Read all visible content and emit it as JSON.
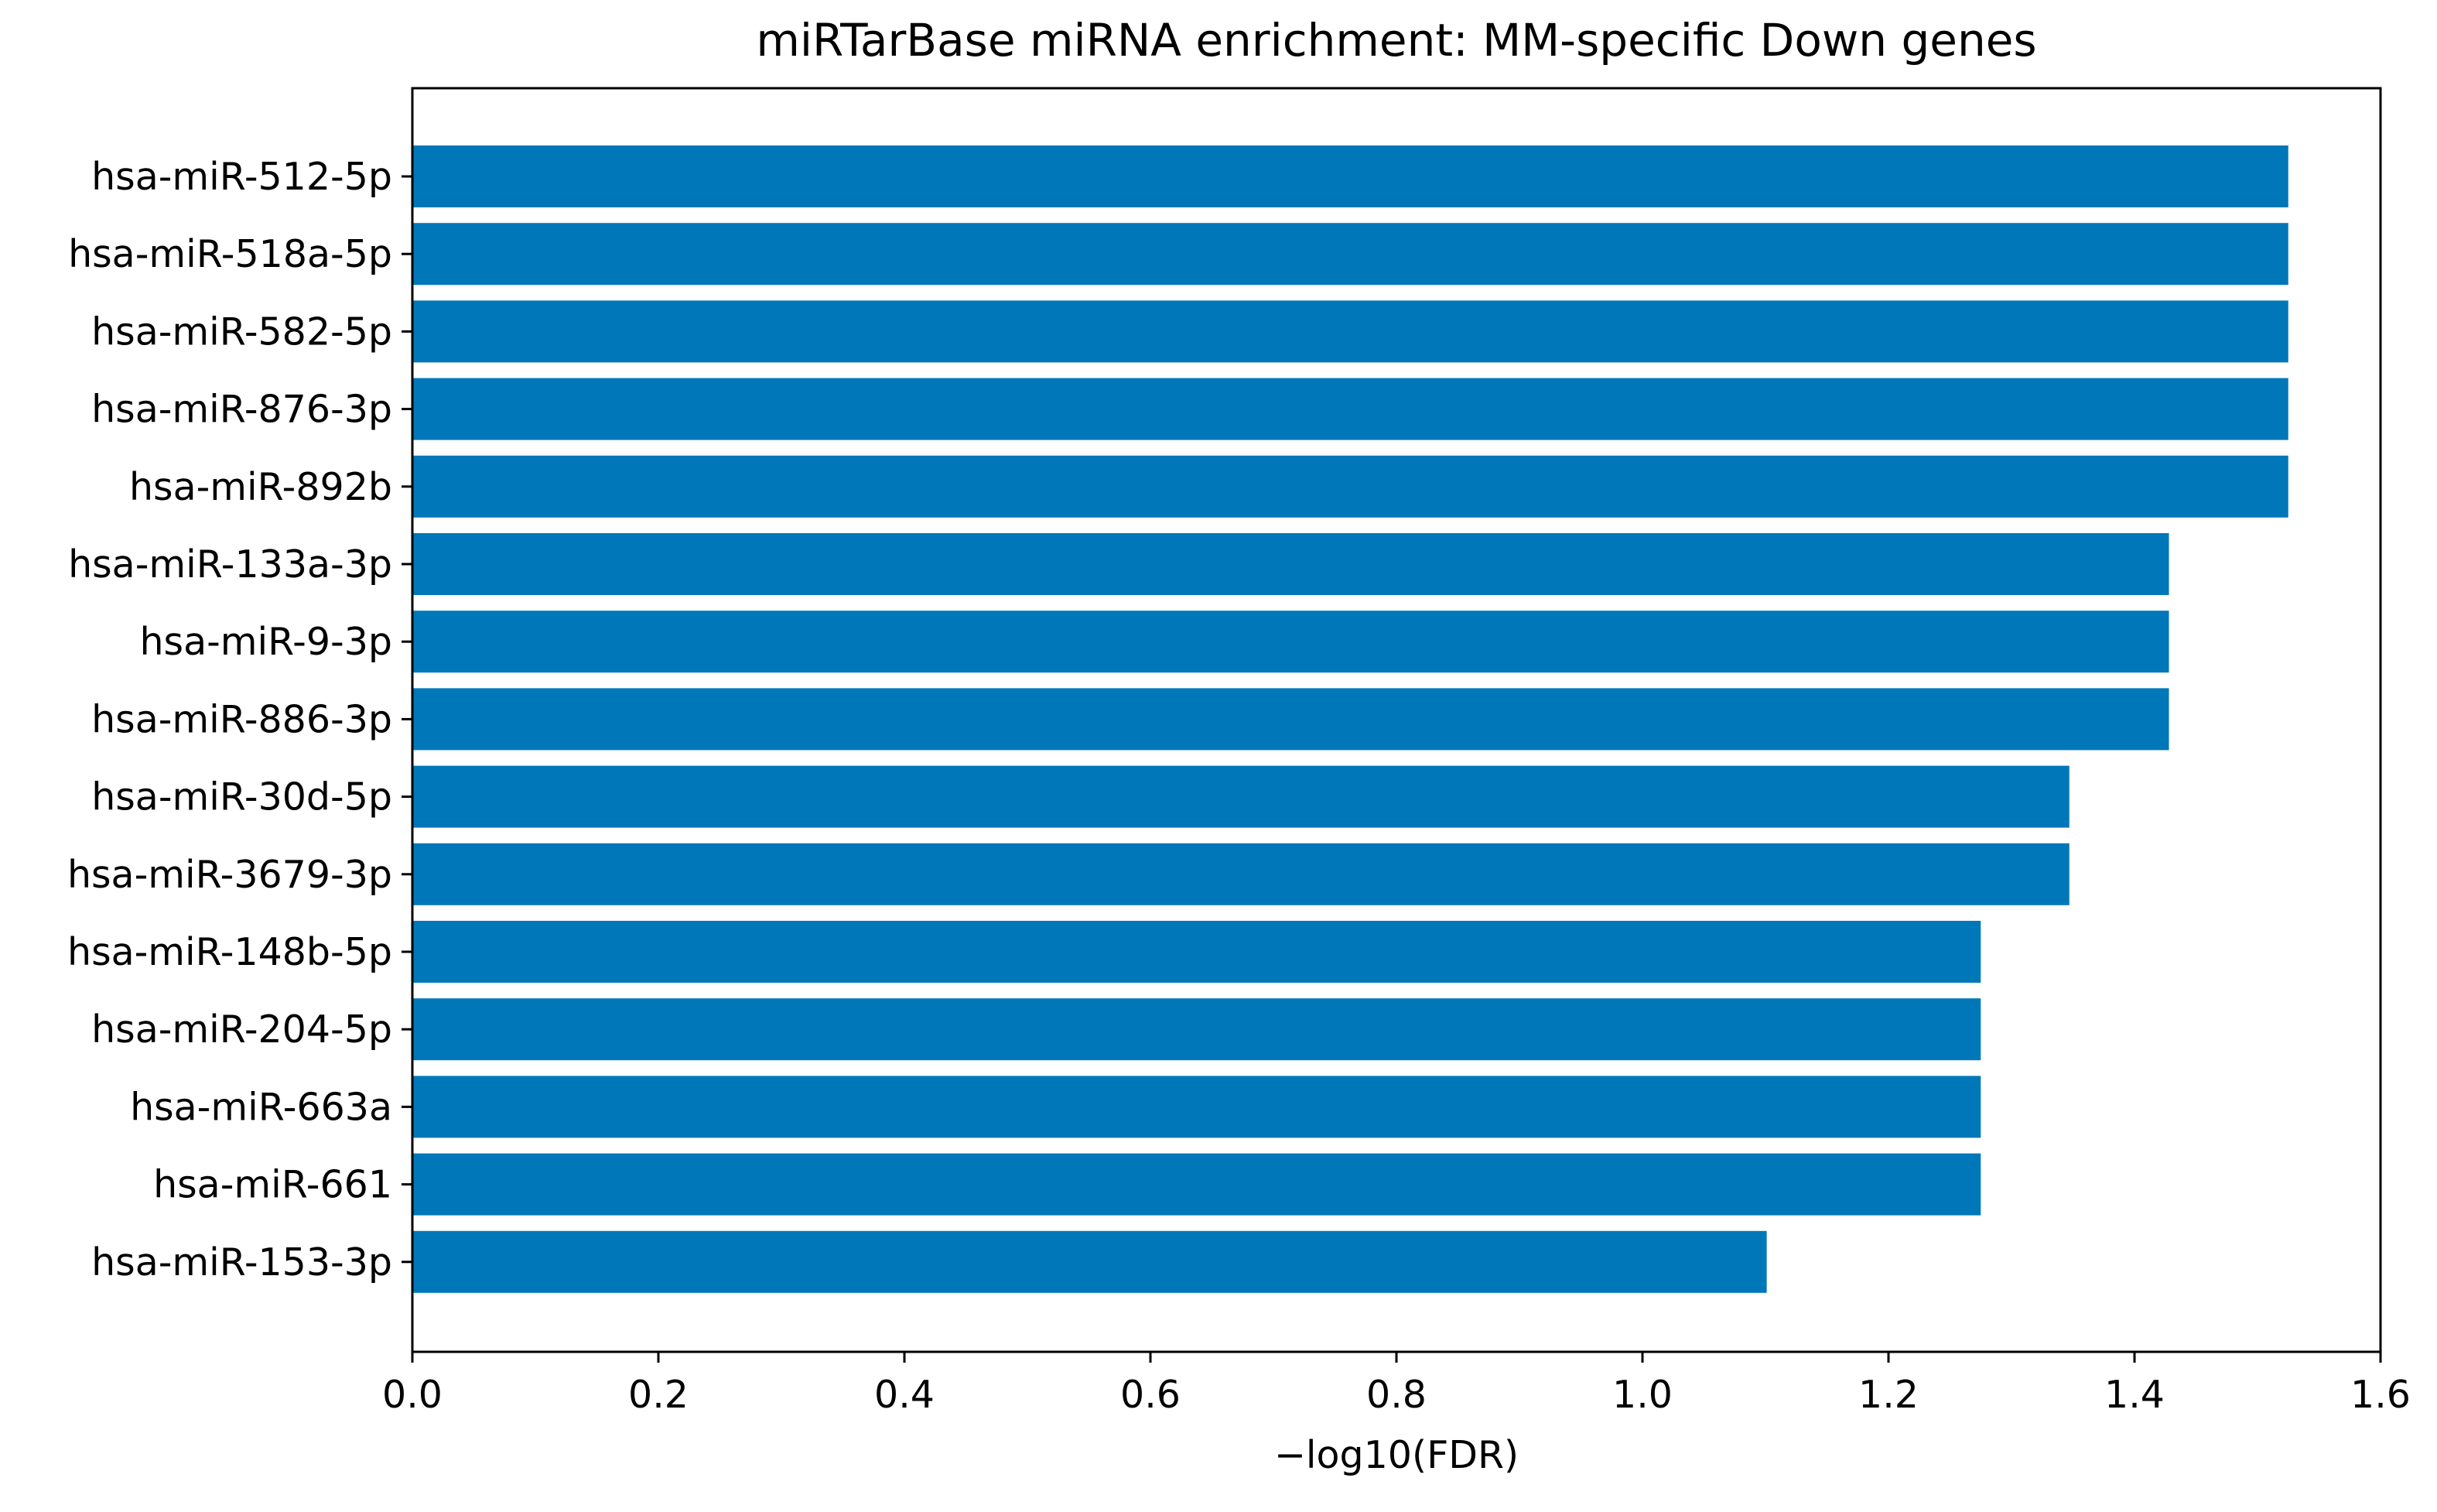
{
  "chart_data": {
    "type": "bar",
    "orientation": "horizontal",
    "title": "miRTarBase miRNA enrichment: MM-specific Down genes",
    "xlabel": "−log10(FDR)",
    "ylabel": "",
    "xlim": [
      0,
      1.6
    ],
    "xticks": [
      "0.0",
      "0.2",
      "0.4",
      "0.6",
      "0.8",
      "1.0",
      "1.2",
      "1.4",
      "1.6"
    ],
    "grid": false,
    "legend": "none",
    "bar_color": "#0077b8",
    "categories": [
      "hsa-miR-512-5p",
      "hsa-miR-518a-5p",
      "hsa-miR-582-5p",
      "hsa-miR-876-3p",
      "hsa-miR-892b",
      "hsa-miR-133a-3p",
      "hsa-miR-9-3p",
      "hsa-miR-886-3p",
      "hsa-miR-30d-5p",
      "hsa-miR-3679-3p",
      "hsa-miR-148b-5p",
      "hsa-miR-204-5p",
      "hsa-miR-663a",
      "hsa-miR-661",
      "hsa-miR-153-3p"
    ],
    "values": [
      1.525,
      1.525,
      1.525,
      1.525,
      1.525,
      1.428,
      1.428,
      1.428,
      1.347,
      1.347,
      1.275,
      1.275,
      1.275,
      1.275,
      1.101
    ]
  }
}
